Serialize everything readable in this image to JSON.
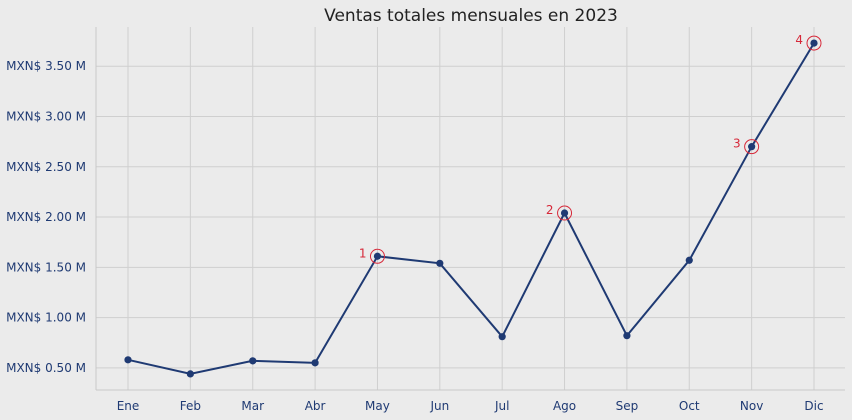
{
  "chart_data": {
    "type": "line",
    "title": "Ventas totales mensuales en 2023",
    "xlabel": "",
    "ylabel": "",
    "categories": [
      "Ene",
      "Feb",
      "Mar",
      "Abr",
      "May",
      "Jun",
      "Jul",
      "Ago",
      "Sep",
      "Oct",
      "Nov",
      "Dic"
    ],
    "series": [
      {
        "values": [
          0.58,
          0.44,
          0.57,
          0.55,
          1.61,
          1.54,
          0.81,
          2.04,
          0.82,
          1.57,
          2.7,
          3.73
        ]
      }
    ],
    "y_ticks": [
      0.5,
      1.0,
      1.5,
      2.0,
      2.5,
      3.0,
      3.5
    ],
    "y_tick_labels": [
      "MXN$ 0.50 M",
      "MXN$ 1.00 M",
      "MXN$ 1.50 M",
      "MXN$ 2.00 M",
      "MXN$ 2.50 M",
      "MXN$ 3.00 M",
      "MXN$ 3.50 M"
    ],
    "ylim": [
      0.28,
      3.89
    ],
    "grid": true,
    "highlights": [
      {
        "label": "1",
        "category_index": 4
      },
      {
        "label": "2",
        "category_index": 7
      },
      {
        "label": "3",
        "category_index": 10
      },
      {
        "label": "4",
        "category_index": 11
      }
    ],
    "colors": {
      "line": "#1f3a73",
      "highlight": "#d62839",
      "background": "#ebebeb",
      "grid": "#cfcfcf"
    }
  }
}
